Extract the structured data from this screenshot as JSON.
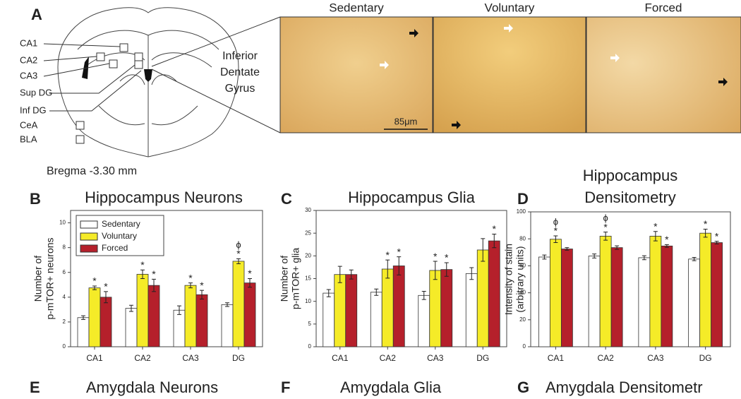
{
  "panel_a": {
    "letter": "A",
    "regions": [
      "CA1",
      "CA2",
      "CA3",
      "Sup DG",
      "Inf DG",
      "CeA",
      "BLA"
    ],
    "bregma": "Bregma -3.30 mm",
    "inset_label": [
      "Inferior",
      "Dentate",
      "Gyrus"
    ],
    "image_titles": [
      "Sedentary",
      "Voluntary",
      "Forced"
    ],
    "scale_bar": "85μm"
  },
  "chart_data": [
    {
      "type": "bar",
      "panel": "B",
      "title": [
        "Hippocampus Neurons"
      ],
      "ylabel": [
        "Number of",
        "p-mTOR+ neurons"
      ],
      "categories": [
        "CA1",
        "CA2",
        "CA3",
        "DG"
      ],
      "ylim": [
        0,
        11
      ],
      "yticks": [
        0,
        2,
        4,
        6,
        8,
        10
      ],
      "legend": "upper left",
      "series": [
        {
          "name": "Sedentary",
          "color": "#ffffff",
          "values": [
            2.35,
            3.1,
            2.95,
            3.4
          ],
          "errors": [
            0.15,
            0.25,
            0.35,
            0.15
          ],
          "sig": [
            null,
            null,
            null,
            null
          ],
          "sig2": [
            null,
            null,
            null,
            null
          ]
        },
        {
          "name": "Voluntary",
          "color": "#f5eb28",
          "values": [
            4.75,
            5.85,
            4.95,
            6.9
          ],
          "errors": [
            0.15,
            0.35,
            0.2,
            0.2
          ],
          "sig": [
            "*",
            "*",
            "*",
            "*"
          ],
          "sig2": [
            null,
            null,
            null,
            "ϕ"
          ]
        },
        {
          "name": "Forced",
          "color": "#b5202b",
          "values": [
            4.0,
            4.95,
            4.2,
            5.15
          ],
          "errors": [
            0.45,
            0.5,
            0.35,
            0.35
          ],
          "sig": [
            "*",
            "*",
            "*",
            "*"
          ],
          "sig2": [
            null,
            null,
            null,
            null
          ]
        }
      ]
    },
    {
      "type": "bar",
      "panel": "C",
      "title": [
        "Hippocampus Glia"
      ],
      "ylabel": [
        "Number of",
        "p-mTOR+ glia"
      ],
      "categories": [
        "CA1",
        "CA2",
        "CA3",
        "DG"
      ],
      "ylim": [
        0,
        30
      ],
      "yticks": [
        0,
        5,
        10,
        15,
        20,
        25,
        30
      ],
      "series": [
        {
          "name": "Sedentary",
          "color": "#ffffff",
          "values": [
            11.8,
            12.0,
            11.3,
            16.1
          ],
          "errors": [
            0.8,
            0.7,
            0.9,
            1.3
          ],
          "sig": [
            null,
            null,
            null,
            null
          ],
          "sig2": [
            null,
            null,
            null,
            null
          ]
        },
        {
          "name": "Voluntary",
          "color": "#f5eb28",
          "values": [
            15.9,
            17.1,
            16.8,
            21.3
          ],
          "errors": [
            1.8,
            2.0,
            2.0,
            2.5
          ],
          "sig": [
            null,
            "*",
            "*",
            null
          ],
          "sig2": [
            null,
            null,
            null,
            null
          ]
        },
        {
          "name": "Forced",
          "color": "#b5202b",
          "values": [
            15.9,
            17.8,
            17.0,
            23.3
          ],
          "errors": [
            1.0,
            2.0,
            1.5,
            1.5
          ],
          "sig": [
            null,
            "*",
            "*",
            "*"
          ],
          "sig2": [
            null,
            null,
            null,
            null
          ]
        }
      ]
    },
    {
      "type": "bar",
      "panel": "D",
      "title": [
        "Hippocampus",
        "Densitometry"
      ],
      "ylabel": [
        "Intensity of stain",
        "(arbitrary units)"
      ],
      "categories": [
        "CA1",
        "CA2",
        "CA3",
        "DG"
      ],
      "ylim": [
        0,
        100
      ],
      "yticks": [
        0,
        20,
        40,
        60,
        80,
        100
      ],
      "series": [
        {
          "name": "Sedentary",
          "color": "#ffffff",
          "values": [
            66.5,
            67.3,
            66,
            65
          ],
          "errors": [
            1.5,
            1.5,
            1.5,
            1.2
          ],
          "sig": [
            null,
            null,
            null,
            null
          ],
          "sig2": [
            null,
            null,
            null,
            null
          ]
        },
        {
          "name": "Voluntary",
          "color": "#f5eb28",
          "values": [
            79.7,
            82,
            82,
            84.2
          ],
          "errors": [
            2.5,
            3,
            3.5,
            3
          ],
          "sig": [
            "*",
            "*",
            "*",
            "*"
          ],
          "sig2": [
            "ϕ",
            "ϕ",
            null,
            null
          ]
        },
        {
          "name": "Forced",
          "color": "#b5202b",
          "values": [
            72.5,
            73.5,
            74.7,
            77.2
          ],
          "errors": [
            1,
            1.3,
            1,
            1
          ],
          "sig": [
            null,
            null,
            "*",
            "*"
          ],
          "sig2": [
            null,
            null,
            null,
            null
          ]
        }
      ]
    }
  ],
  "bottom_panels": [
    {
      "panel": "E",
      "title": "Amygdala Neurons"
    },
    {
      "panel": "F",
      "title": "Amygdala Glia"
    },
    {
      "panel": "G",
      "title": "Amygdala Densitometr"
    }
  ]
}
